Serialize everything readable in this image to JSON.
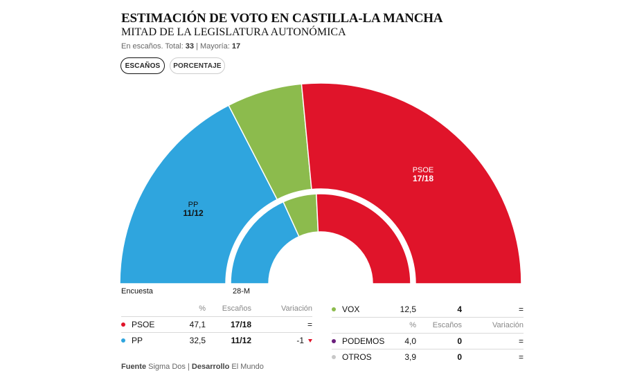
{
  "header": {
    "title": "ESTIMACIÓN DE VOTO EN CASTILLA-LA MANCHA",
    "subtitle": "MITAD DE LA LEGISLATURA AUTONÓMICA",
    "meta_prefix": "En escaños. Total:",
    "meta_total": "33",
    "meta_sep": "| Mayoría:",
    "meta_majority": "17"
  },
  "toggle": {
    "seats_label": "ESCAÑOS",
    "percent_label": "PORCENTAJE",
    "selected": "ESCAÑOS"
  },
  "chart_data": {
    "type": "pie",
    "subtype": "hemicycle",
    "total_seats": 33,
    "majority": 17,
    "outer_ring_label": "Encuesta",
    "inner_ring_label": "28-M",
    "rings": [
      {
        "name": "Encuesta",
        "slices": [
          {
            "party": "PP",
            "value": 11.5,
            "color": "#2fa5de"
          },
          {
            "party": "VOX",
            "value": 4,
            "color": "#8cbb4d"
          },
          {
            "party": "PSOE",
            "value": 17.5,
            "color": "#e0142a"
          }
        ]
      },
      {
        "name": "28-M",
        "slices": [
          {
            "party": "PP",
            "value": 12,
            "color": "#2fa5de"
          },
          {
            "party": "VOX",
            "value": 4,
            "color": "#8cbb4d"
          },
          {
            "party": "PSOE",
            "value": 17,
            "color": "#e0142a"
          }
        ]
      }
    ],
    "slice_labels": [
      {
        "party": "PP",
        "name": "PP",
        "value": "11/12"
      },
      {
        "party": "PSOE",
        "name": "PSOE",
        "value": "17/18"
      }
    ]
  },
  "table": {
    "headers": {
      "pct": "%",
      "seats": "Escaños",
      "change": "Variación"
    },
    "left_rows": [
      {
        "party": "PSOE",
        "color": "#e0142a",
        "pct": "47,1",
        "seats": "17/18",
        "change": "=",
        "trend": ""
      },
      {
        "party": "PP",
        "color": "#2fa5de",
        "pct": "32,5",
        "seats": "11/12",
        "change": "-1",
        "trend": "down"
      }
    ],
    "right_rows": [
      {
        "party": "VOX",
        "color": "#8cbb4d",
        "pct": "12,5",
        "seats": "4",
        "change": "="
      },
      {
        "party": "PODEMOS",
        "color": "#6b1f7c",
        "pct": "4,0",
        "seats": "0",
        "change": "="
      },
      {
        "party": "OTROS",
        "color": "#c8c8c8",
        "pct": "3,9",
        "seats": "0",
        "change": "="
      }
    ]
  },
  "footer": {
    "source_label": "Fuente",
    "source_value": "Sigma Dos",
    "sep": "|",
    "dev_label": "Desarrollo",
    "dev_value": "El Mundo"
  }
}
